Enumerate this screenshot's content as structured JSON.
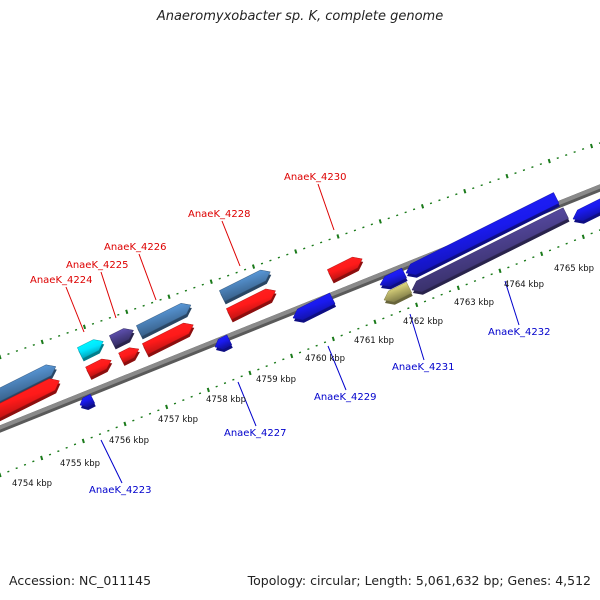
{
  "title": "Anaeromyxobacter sp. K, complete genome",
  "accession_text": "Accession: NC_011145",
  "summary_text": "Topology: circular; Length: 5,061,632 bp; Genes: 4,512",
  "colors": {
    "forward_red": "#ff1a1a",
    "forward_steel": "#4a7fb5",
    "forward_cyan": "#00e5ff",
    "forward_purple": "#4a3f8a",
    "reverse_blue": "#1a1aee",
    "reverse_purple": "#4a3f8a",
    "reverse_khaki": "#bdb76b",
    "label_forward": "#dd0000",
    "label_reverse": "#0000cc",
    "tick_green": "#1a7a1a",
    "axis_grey": "#8a8a8a"
  },
  "scale_labels": [
    "4754 kbp",
    "4755 kbp",
    "4756 kbp",
    "4757 kbp",
    "4758 kbp",
    "4759 kbp",
    "4760 kbp",
    "4761 kbp",
    "4762 kbp",
    "4763 kbp",
    "4764 kbp",
    "4765 kbp"
  ],
  "forward_gene_labels": [
    "AnaeK_4224",
    "AnaeK_4225",
    "AnaeK_4226",
    "AnaeK_4228",
    "AnaeK_4230"
  ],
  "reverse_gene_labels": [
    "AnaeK_4223",
    "AnaeK_4227",
    "AnaeK_4229",
    "AnaeK_4231",
    "AnaeK_4232"
  ]
}
